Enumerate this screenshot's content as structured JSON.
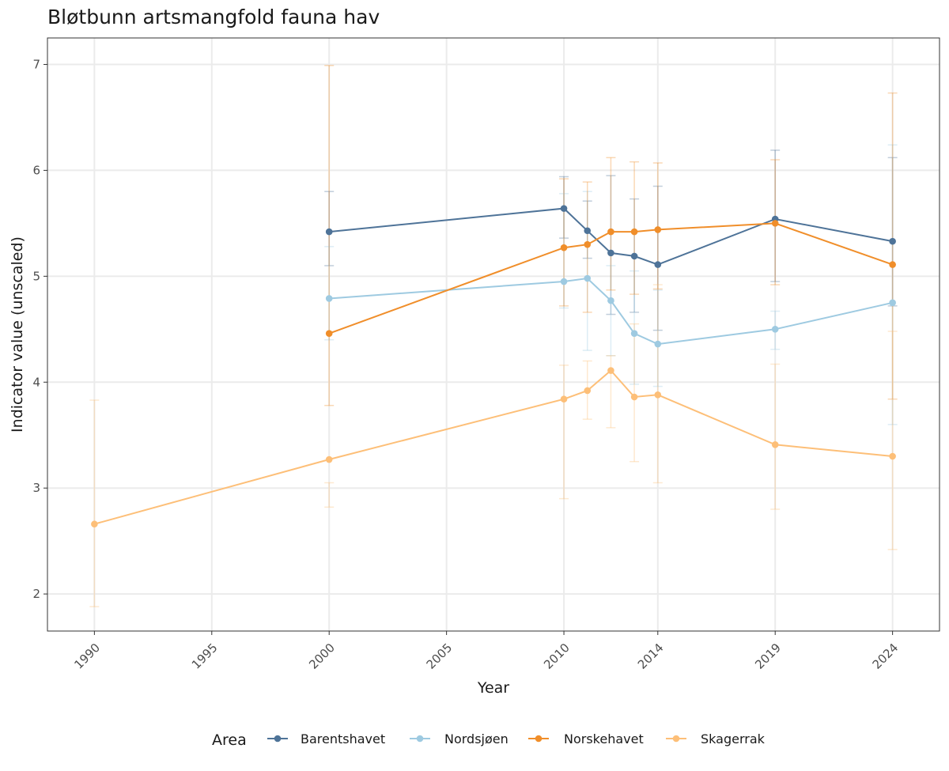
{
  "chart_data": {
    "type": "line",
    "title": "Bløtbunn artsmangfold fauna hav",
    "xlabel": "Year",
    "ylabel": "Indicator value (unscaled)",
    "x_ticks": [
      1990,
      1995,
      2000,
      2005,
      2010,
      2014,
      2019,
      2024
    ],
    "x_tick_labels": [
      "1990",
      "1995",
      "2000",
      "2005",
      "2010",
      "2014",
      "2019",
      "2024"
    ],
    "y_ticks": [
      2,
      3,
      4,
      5,
      6,
      7
    ],
    "y_tick_labels": [
      "2",
      "3",
      "4",
      "5",
      "6",
      "7"
    ],
    "xlim": [
      1988,
      2026
    ],
    "ylim": [
      1.65,
      7.25
    ],
    "grid": true,
    "legend": {
      "title": "Area",
      "position": "bottom"
    },
    "series": [
      {
        "name": "Barentshavet",
        "color": "#4e7398",
        "x": [
          2000,
          2010,
          2011,
          2012,
          2013,
          2014,
          2019,
          2024
        ],
        "y": [
          5.42,
          5.64,
          5.43,
          5.22,
          5.19,
          5.11,
          5.54,
          5.33
        ],
        "y_low": [
          5.1,
          5.36,
          5.17,
          4.64,
          4.66,
          4.49,
          4.95,
          4.72
        ],
        "y_high": [
          5.8,
          5.94,
          5.71,
          5.95,
          5.73,
          5.85,
          6.19,
          6.12
        ]
      },
      {
        "name": "Nordsjøen",
        "color": "#9ecae1",
        "x": [
          2000,
          2010,
          2011,
          2012,
          2013,
          2014,
          2019,
          2024
        ],
        "y": [
          4.79,
          4.95,
          4.98,
          4.77,
          4.46,
          4.36,
          4.5,
          4.75
        ],
        "y_low": [
          4.4,
          4.7,
          4.3,
          4.25,
          3.98,
          3.96,
          4.31,
          3.6
        ],
        "y_high": [
          5.28,
          5.78,
          5.8,
          5.1,
          5.05,
          4.87,
          4.67,
          6.24
        ]
      },
      {
        "name": "Norskehavet",
        "color": "#f08e2a",
        "x": [
          2000,
          2010,
          2011,
          2012,
          2013,
          2014,
          2019,
          2024
        ],
        "y": [
          4.46,
          5.27,
          5.3,
          5.42,
          5.42,
          5.44,
          5.5,
          5.11
        ],
        "y_low": [
          3.78,
          4.72,
          4.66,
          4.87,
          4.83,
          4.88,
          4.92,
          3.84
        ],
        "y_high": [
          6.99,
          5.92,
          5.89,
          6.12,
          6.08,
          6.07,
          6.1,
          6.73
        ]
      },
      {
        "name": "Skagerrak",
        "color": "#fdbf78",
        "x": [
          1990,
          2000,
          2010,
          2011,
          2012,
          2013,
          2014,
          2019,
          2024
        ],
        "y": [
          2.66,
          3.27,
          3.84,
          3.92,
          4.11,
          3.86,
          3.88,
          3.41,
          3.3
        ],
        "y_low": [
          1.88,
          2.82,
          2.9,
          3.65,
          3.57,
          3.25,
          3.05,
          2.8,
          2.42
        ],
        "y_high": [
          3.83,
          3.05,
          4.16,
          4.2,
          4.25,
          4.55,
          4.92,
          4.17,
          4.48
        ]
      }
    ]
  }
}
